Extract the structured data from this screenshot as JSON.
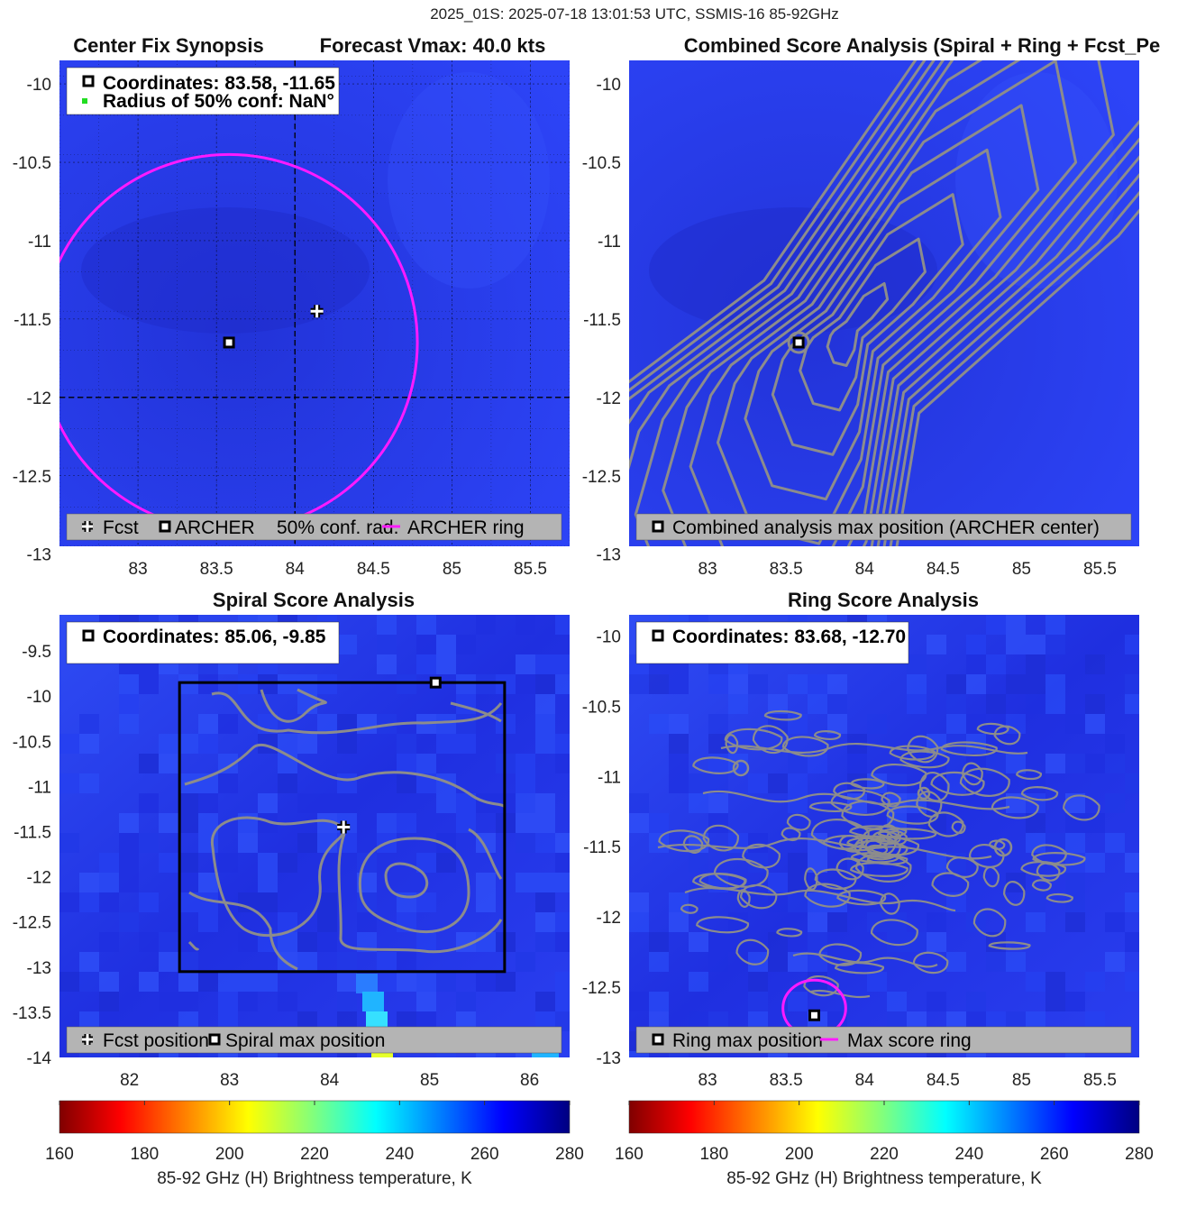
{
  "figure_title": "2025_01S: 2025-07-18 13:01:53 UTC, SSMIS-16 85-92GHz",
  "colors": {
    "background_field": "#2a3cf2",
    "contour": "#8c8c8c",
    "ring": "#ff1aff",
    "legend_bg": "#b4b4b4",
    "box": "#000000"
  },
  "chart_data": [
    {
      "type": "heatmap",
      "title_left": "Center Fix Synopsis",
      "title_right": "Forecast Vmax: 40.0 kts",
      "xlim": [
        82.5,
        85.75
      ],
      "ylim": [
        -12.95,
        -9.85
      ],
      "xticks": [
        "83",
        "83.5",
        "84",
        "84.5",
        "85",
        "85.5"
      ],
      "yticks": [
        "-10",
        "-10.5",
        "-11",
        "-11.5",
        "-12",
        "-12.5",
        "-13"
      ],
      "grid": true,
      "info_box": [
        "Coordinates: 83.58, -11.65",
        "Radius of 50% conf: NaN°"
      ],
      "legend": [
        "Fcst",
        "ARCHER",
        "50% conf. rad.",
        "ARCHER ring"
      ],
      "legend_placement": "bottom",
      "fcst_position": [
        84.14,
        -11.45
      ],
      "archer_position": [
        83.58,
        -11.65
      ],
      "ring": {
        "center": [
          83.58,
          -11.65
        ],
        "radius_deg": 1.2
      },
      "crosshair": [
        84.0,
        -12.0
      ]
    },
    {
      "type": "heatmap",
      "title": "Combined Score Analysis (Spiral + Ring + Fcst_Pe",
      "xlim": [
        82.5,
        85.75
      ],
      "ylim": [
        -12.95,
        -9.85
      ],
      "xticks": [
        "83",
        "83.5",
        "84",
        "84.5",
        "85",
        "85.5"
      ],
      "yticks": [
        "-10",
        "-10.5",
        "-11",
        "-11.5",
        "-12",
        "-12.5",
        "-13"
      ],
      "legend": [
        "Combined analysis max position (ARCHER center)"
      ],
      "legend_placement": "bottom",
      "max_position": [
        83.58,
        -11.65
      ]
    },
    {
      "type": "heatmap",
      "title": "Spiral Score Analysis",
      "xlim": [
        81.3,
        86.4
      ],
      "ylim": [
        -14.0,
        -9.1
      ],
      "xticks": [
        "82",
        "83",
        "84",
        "85",
        "86"
      ],
      "yticks": [
        "-9.5",
        "-10",
        "-10.5",
        "-11",
        "-11.5",
        "-12",
        "-12.5",
        "-13",
        "-13.5",
        "-14"
      ],
      "info_box": [
        "Coordinates: 85.06, -9.85"
      ],
      "legend": [
        "Fcst position",
        "Spiral max position"
      ],
      "legend_placement": "bottom",
      "fcst_position": [
        84.14,
        -11.45
      ],
      "max_position": [
        85.06,
        -9.85
      ],
      "search_box": {
        "x": [
          82.5,
          85.75
        ],
        "y": [
          -13.05,
          -9.85
        ]
      }
    },
    {
      "type": "heatmap",
      "title": "Ring Score Analysis",
      "xlim": [
        82.5,
        85.75
      ],
      "ylim": [
        -13.0,
        -9.85
      ],
      "xticks": [
        "83",
        "83.5",
        "84",
        "84.5",
        "85",
        "85.5"
      ],
      "yticks": [
        "-10",
        "-10.5",
        "-11",
        "-11.5",
        "-12",
        "-12.5",
        "-13"
      ],
      "info_box": [
        "Coordinates: 83.68, -12.70"
      ],
      "legend": [
        "Ring max position",
        "Max score ring"
      ],
      "legend_placement": "bottom",
      "max_position": [
        83.68,
        -12.7
      ],
      "ring": {
        "center": [
          83.68,
          -12.65
        ],
        "radius_deg": 0.2
      }
    }
  ],
  "colorbars": [
    {
      "ticks": [
        "160",
        "180",
        "200",
        "220",
        "240",
        "260",
        "280"
      ],
      "label": "85-92 GHz (H) Brightness temperature, K"
    },
    {
      "ticks": [
        "160",
        "180",
        "200",
        "220",
        "240",
        "260",
        "280"
      ],
      "label": "85-92 GHz (H) Brightness temperature, K"
    }
  ]
}
